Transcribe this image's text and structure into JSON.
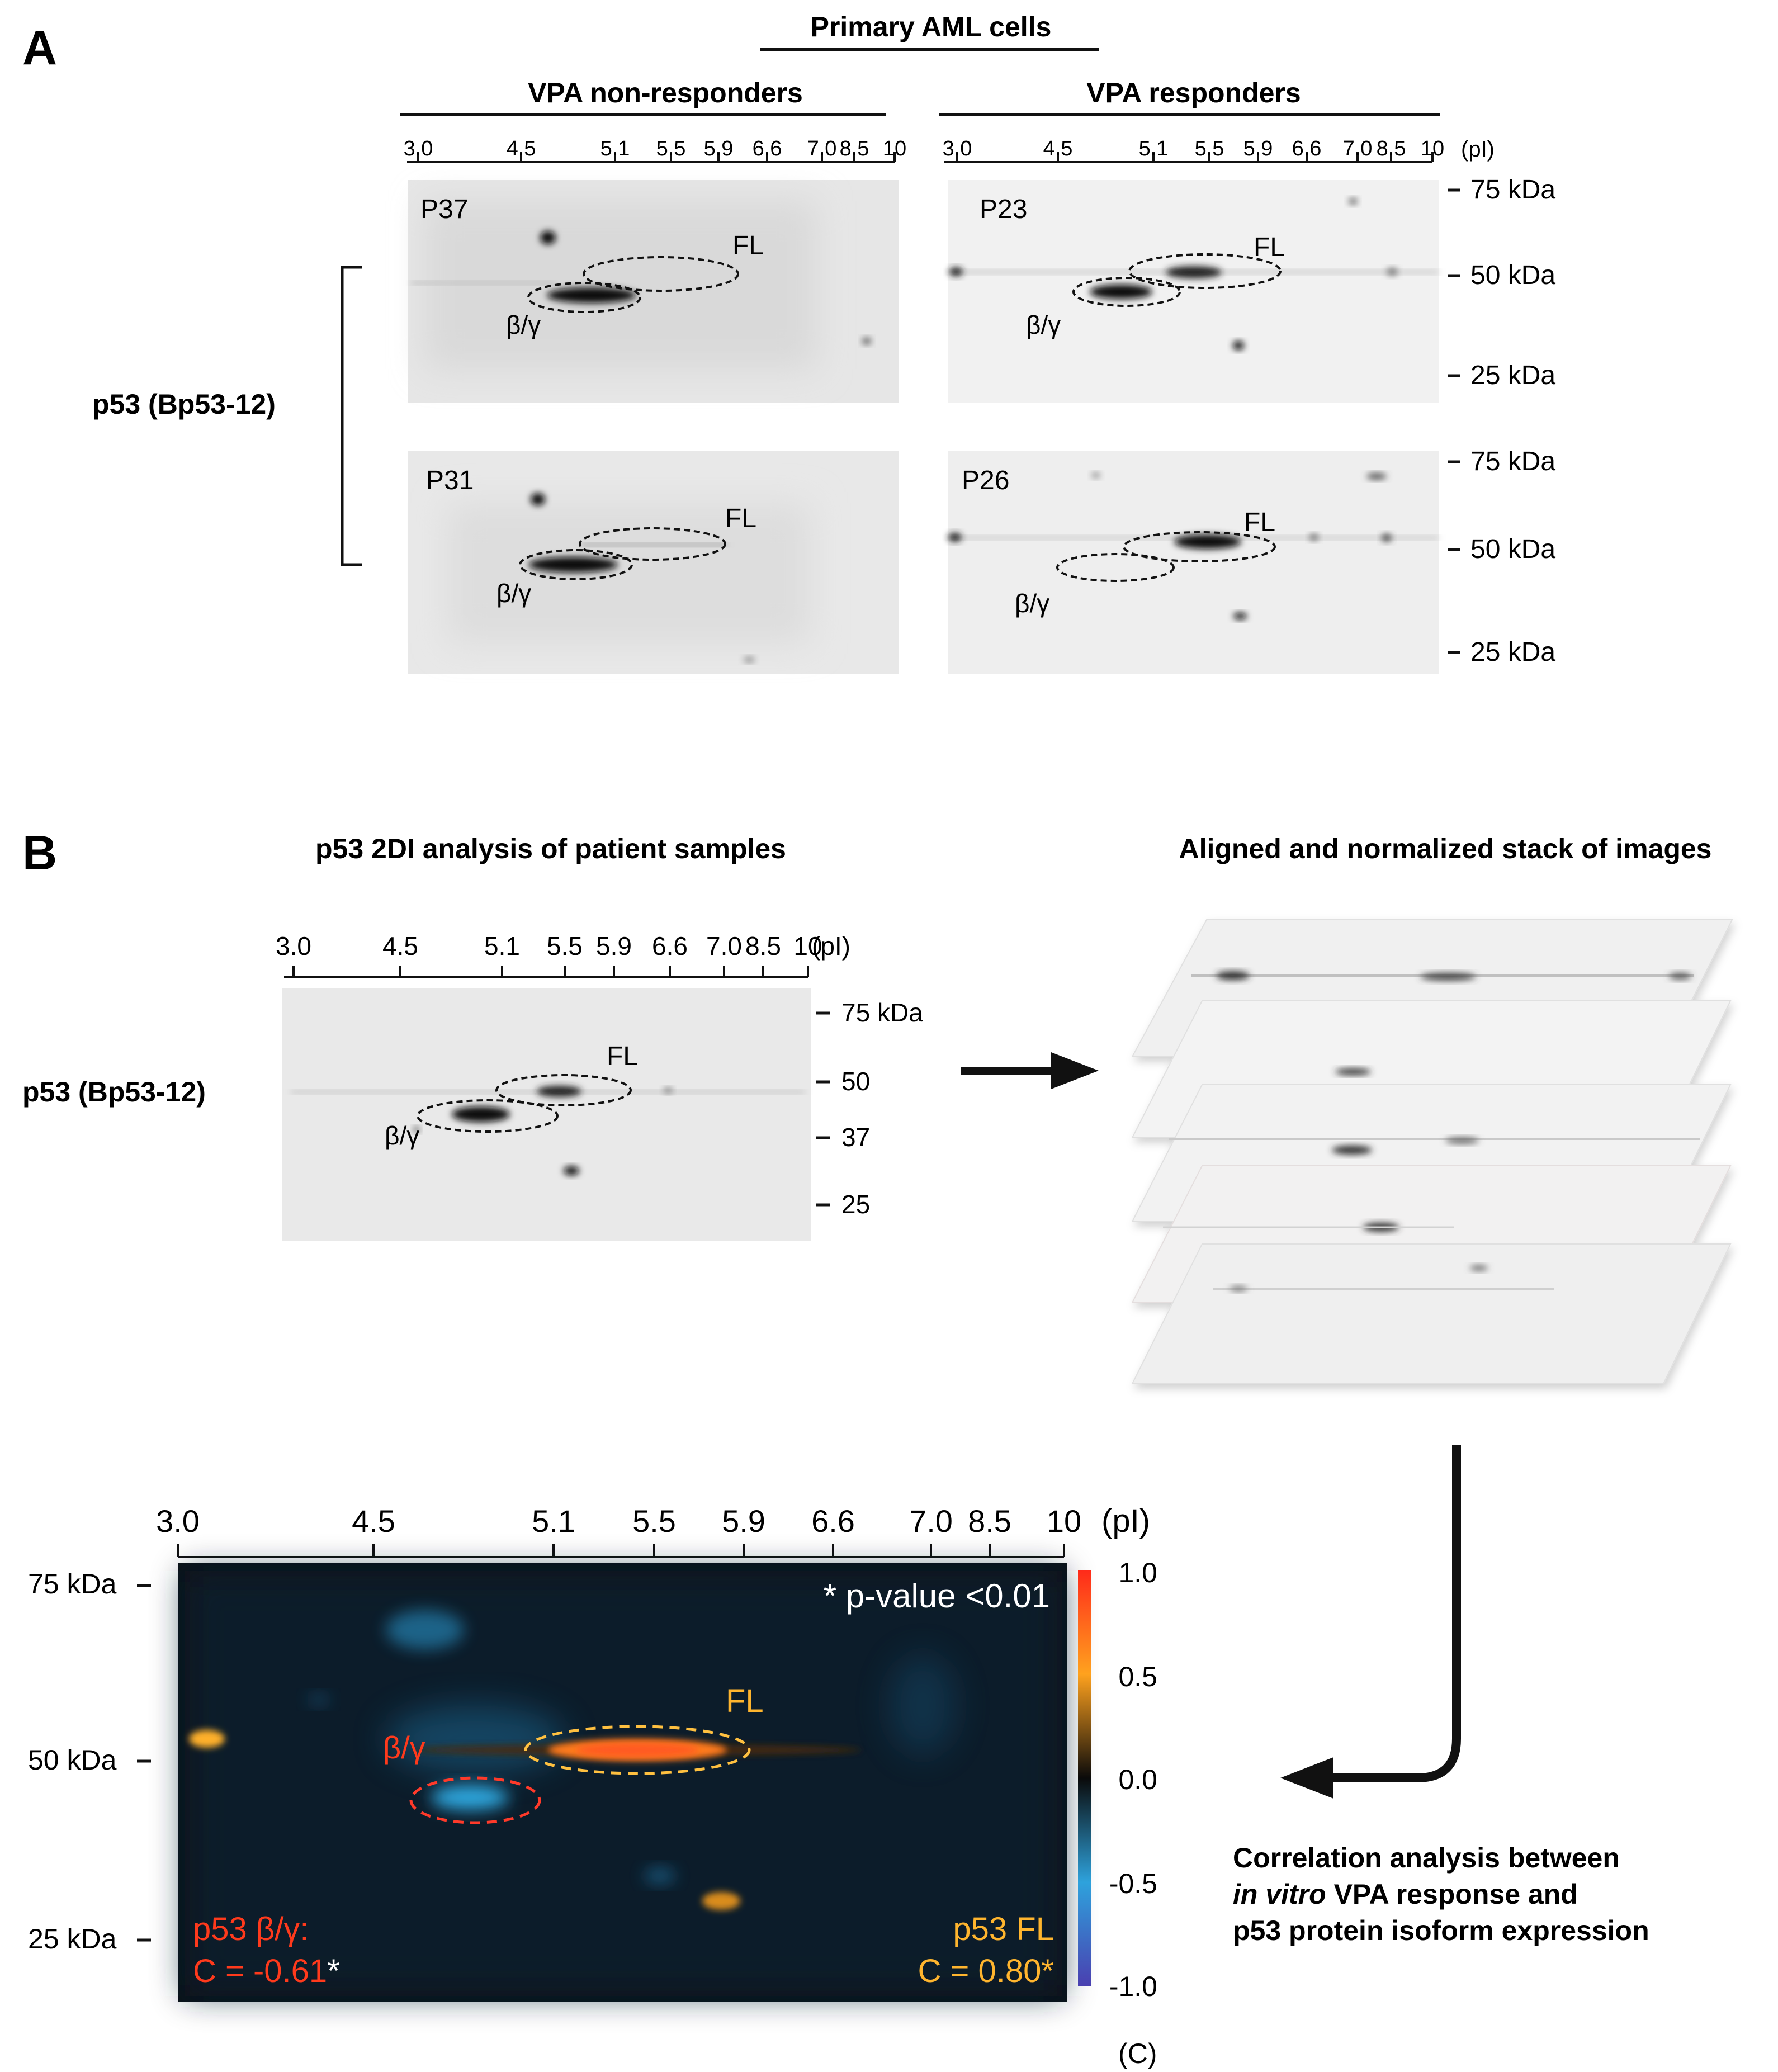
{
  "panel_a": {
    "letter": "A",
    "header": "Primary AML cells",
    "group_left": "VPA non-responders",
    "group_right": "VPA responders",
    "antibody_label": "p53 (Bp53-12)",
    "pi_ticks": [
      "3.0",
      "4.5",
      "5.1",
      "5.5",
      "5.9",
      "6.6",
      "7.0",
      "8.5",
      "10"
    ],
    "pi_unit": "(pI)",
    "kda_top": [
      "75 kDa",
      "50 kDa",
      "25 kDa"
    ],
    "kda_bottom": [
      "75 kDa",
      "50 kDa",
      "25 kDa"
    ],
    "blots": [
      {
        "patient": "P37",
        "fl": "FL",
        "bg": "β/γ"
      },
      {
        "patient": "P23",
        "fl": "FL",
        "bg": "β/γ"
      },
      {
        "patient": "P31",
        "fl": "FL",
        "bg": "β/γ"
      },
      {
        "patient": "P26",
        "fl": "FL",
        "bg": "β/γ"
      }
    ]
  },
  "panel_b": {
    "letter": "B",
    "left_title": "p53 2DI analysis of patient samples",
    "right_title": "Aligned and normalized stack of images",
    "antibody_label": "p53 (Bp53-12)",
    "pi_ticks": [
      "3.0",
      "4.5",
      "5.1",
      "5.5",
      "5.9",
      "6.6",
      "7.0",
      "8.5",
      "10"
    ],
    "pi_unit": "(pI)",
    "kda": [
      "75 kDa",
      "50",
      "37",
      "25"
    ],
    "fl": "FL",
    "bg": "β/γ",
    "heatmap": {
      "pi_ticks": [
        "3.0",
        "4.5",
        "5.1",
        "5.5",
        "5.9",
        "6.6",
        "7.0",
        "8.5",
        "10"
      ],
      "pi_unit": "(pI)",
      "kda": [
        "75 kDa",
        "50 kDa",
        "25 kDa"
      ],
      "pvalue_note": "* p-value <0.01",
      "fl_label": "FL",
      "bg_label": "β/γ",
      "bg_stat_title": "p53 β/γ:",
      "bg_stat_value": "C = -0.61",
      "bg_stat_star": "*",
      "fl_stat_title": "p53 FL",
      "fl_stat_value": "C = 0.80*",
      "colorbar_ticks": [
        "1.0",
        "0.5",
        "0.0",
        "-0.5",
        "-1.0"
      ],
      "colorbar_unit": "(C)",
      "colors": {
        "positive": "#ff3a1c",
        "fl": "#ffb52e",
        "negative": "#2ea8e0",
        "background": "#0b1118"
      }
    },
    "caption_line1": "Correlation analysis between",
    "caption_line2_italic": "in vitro",
    "caption_line2_rest": " VPA response and",
    "caption_line3": "p53 protein isoform expression"
  }
}
